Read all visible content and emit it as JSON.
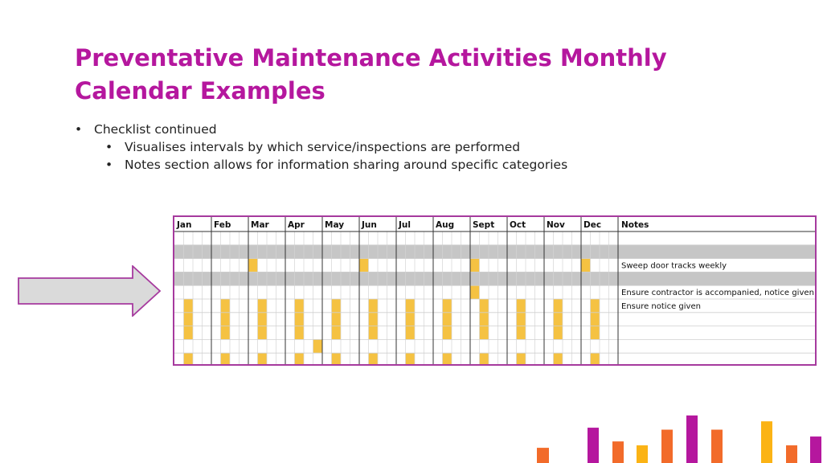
{
  "slide": {
    "title": "Preventative Maintenance Activities Monthly Calendar Examples",
    "bullets": [
      {
        "level": 1,
        "text": "Checklist continued"
      },
      {
        "level": 2,
        "text": "Visualises intervals by which service/inspections are performed"
      },
      {
        "level": 2,
        "text": "Notes section allows for information sharing around specific categories"
      }
    ]
  },
  "calendar": {
    "months": [
      "Jan",
      "Feb",
      "Mar",
      "Apr",
      "May",
      "Jun",
      "Jul",
      "Aug",
      "Sept",
      "Oct",
      "Nov",
      "Dec"
    ],
    "notes_header": "Notes",
    "weeks_per_month": 4,
    "grey_rows": [
      1,
      3
    ],
    "highlight_color": "#f5c242",
    "grey_color": "#c6c6c6",
    "rows": [
      {
        "note": "",
        "cells": []
      },
      {
        "note": "",
        "cells": []
      },
      {
        "note": "Sweep door tracks weekly",
        "cells": [
          [
            2,
            0
          ],
          [
            5,
            0
          ],
          [
            8,
            0
          ],
          [
            11,
            0
          ]
        ]
      },
      {
        "note": "",
        "cells": []
      },
      {
        "note": "Ensure contractor is accompanied, notice given",
        "cells": [
          [
            8,
            0
          ]
        ]
      },
      {
        "note": "Ensure notice given",
        "cells": [
          [
            0,
            1
          ],
          [
            1,
            1
          ],
          [
            2,
            1
          ],
          [
            3,
            1
          ],
          [
            4,
            1
          ],
          [
            5,
            1
          ],
          [
            6,
            1
          ],
          [
            7,
            1
          ],
          [
            8,
            1
          ],
          [
            9,
            1
          ],
          [
            10,
            1
          ],
          [
            11,
            1
          ]
        ]
      },
      {
        "note": "",
        "cells": [
          [
            0,
            1
          ],
          [
            1,
            1
          ],
          [
            2,
            1
          ],
          [
            3,
            1
          ],
          [
            4,
            1
          ],
          [
            5,
            1
          ],
          [
            6,
            1
          ],
          [
            7,
            1
          ],
          [
            8,
            1
          ],
          [
            9,
            1
          ],
          [
            10,
            1
          ],
          [
            11,
            1
          ]
        ]
      },
      {
        "note": "",
        "cells": [
          [
            0,
            1
          ],
          [
            1,
            1
          ],
          [
            2,
            1
          ],
          [
            3,
            1
          ],
          [
            4,
            1
          ],
          [
            5,
            1
          ],
          [
            6,
            1
          ],
          [
            7,
            1
          ],
          [
            8,
            1
          ],
          [
            9,
            1
          ],
          [
            10,
            1
          ],
          [
            11,
            1
          ]
        ]
      },
      {
        "note": "",
        "cells": [
          [
            3,
            3
          ]
        ]
      },
      {
        "note": "",
        "cells": [
          [
            0,
            1
          ],
          [
            1,
            1
          ],
          [
            2,
            1
          ],
          [
            3,
            1
          ],
          [
            4,
            1
          ],
          [
            5,
            1
          ],
          [
            6,
            1
          ],
          [
            7,
            1
          ],
          [
            8,
            1
          ],
          [
            9,
            1
          ],
          [
            10,
            1
          ],
          [
            11,
            1
          ]
        ]
      },
      {
        "note": "Ensure contractor is accompanied",
        "cells": [
          [
            0,
            3
          ],
          [
            6,
            3
          ]
        ]
      }
    ]
  },
  "decor": {
    "bars": [
      {
        "color": "#f26b2a",
        "value": 0.31
      },
      {
        "color": "#b5179e",
        "value": 0.72
      },
      {
        "color": "#f26b2a",
        "value": 0.44
      },
      {
        "color": "#fbb315",
        "value": 0.36
      },
      {
        "color": "#f26b2a",
        "value": 0.68
      },
      {
        "color": "#b5179e",
        "value": 0.97
      },
      {
        "color": "#f26b2a",
        "value": 0.68
      },
      {
        "color": "#fbb315",
        "value": 0.85
      },
      {
        "color": "#f26b2a",
        "value": 0.36
      },
      {
        "color": "#b5179e",
        "value": 0.54
      }
    ]
  }
}
